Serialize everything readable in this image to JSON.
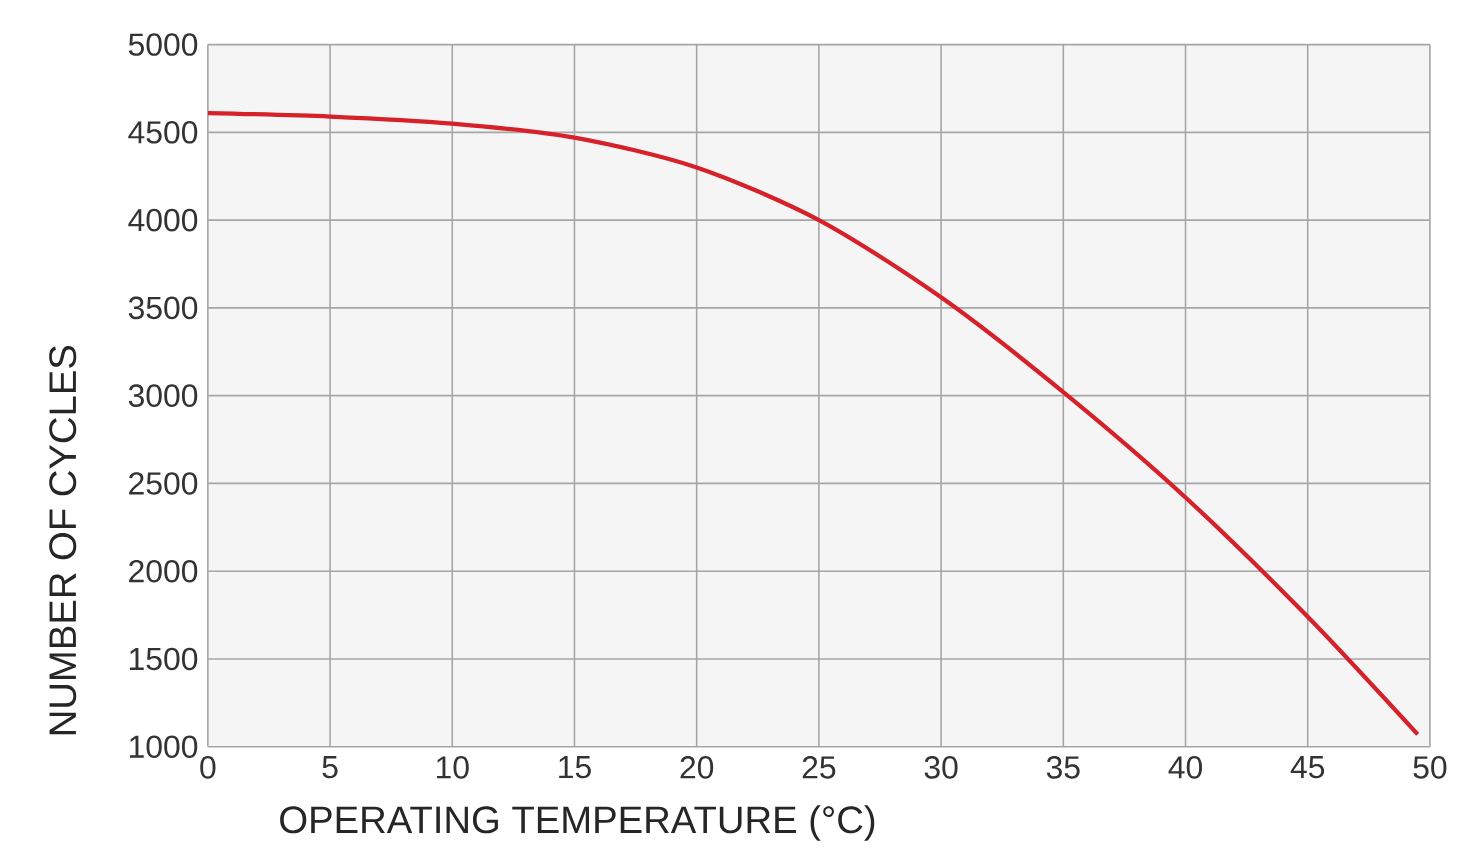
{
  "chart_data": {
    "type": "line",
    "xlabel": "OPERATING TEMPERATURE (°C)",
    "ylabel": "NUMBER OF CYCLES",
    "x": [
      0,
      5,
      10,
      15,
      20,
      25,
      30,
      35,
      40,
      45,
      49.5
    ],
    "series": [
      {
        "color": "#d6202a",
        "values": [
          4610,
          4590,
          4550,
          4470,
          4300,
          4000,
          3560,
          3020,
          2420,
          1740,
          1070
        ]
      }
    ],
    "xlim": [
      0,
      50
    ],
    "ylim": [
      1000,
      5000
    ],
    "xticks": [
      0,
      5,
      10,
      15,
      20,
      25,
      30,
      35,
      40,
      45,
      50
    ],
    "yticks": [
      1000,
      1500,
      2000,
      2500,
      3000,
      3500,
      4000,
      4500,
      5000
    ],
    "grid": true,
    "line_style": "solid",
    "marker": "none"
  }
}
